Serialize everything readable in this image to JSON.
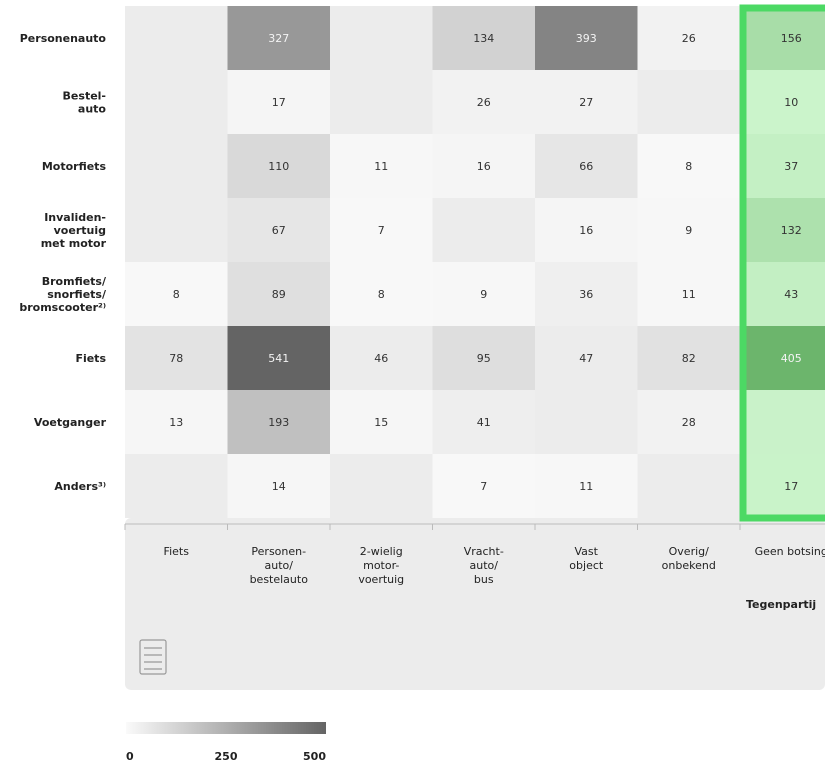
{
  "chart_data": {
    "type": "heatmap",
    "rows": [
      "Personenauto",
      "Bestel-\nauto",
      "Motorfiets",
      "Invaliden-\nvoertuig\nmet motor",
      "Bromfiets/\nsnorfiets/\nbromscooter²⁾",
      "Fiets",
      "Voetganger",
      "Anders³⁾"
    ],
    "columns": [
      "Fiets",
      "Personen-\nauto/\nbestelauto",
      "2-wielig\nmotor-\nvoertuig",
      "Vracht-\nauto/\nbus",
      "Vast\nobject",
      "Overig/\nonbekend",
      "Geen botsing"
    ],
    "values": [
      [
        null,
        327,
        null,
        134,
        393,
        26,
        156
      ],
      [
        null,
        17,
        null,
        26,
        27,
        null,
        10
      ],
      [
        null,
        110,
        11,
        16,
        66,
        8,
        37
      ],
      [
        null,
        67,
        7,
        null,
        16,
        9,
        132
      ],
      [
        8,
        89,
        8,
        9,
        36,
        11,
        43
      ],
      [
        78,
        541,
        46,
        95,
        47,
        82,
        405
      ],
      [
        13,
        193,
        15,
        41,
        null,
        28,
        null
      ],
      [
        null,
        14,
        null,
        7,
        11,
        null,
        17
      ]
    ],
    "xlabel": "Tegenpartij",
    "color_scale": {
      "min": 0,
      "max": 500,
      "ticks": [
        0,
        250,
        500
      ]
    },
    "highlight_column": "Geen botsing",
    "colors": {
      "highlight": "#4cd964",
      "highlight_fill": "#c9f2c9",
      "panel": "#ececec"
    }
  }
}
